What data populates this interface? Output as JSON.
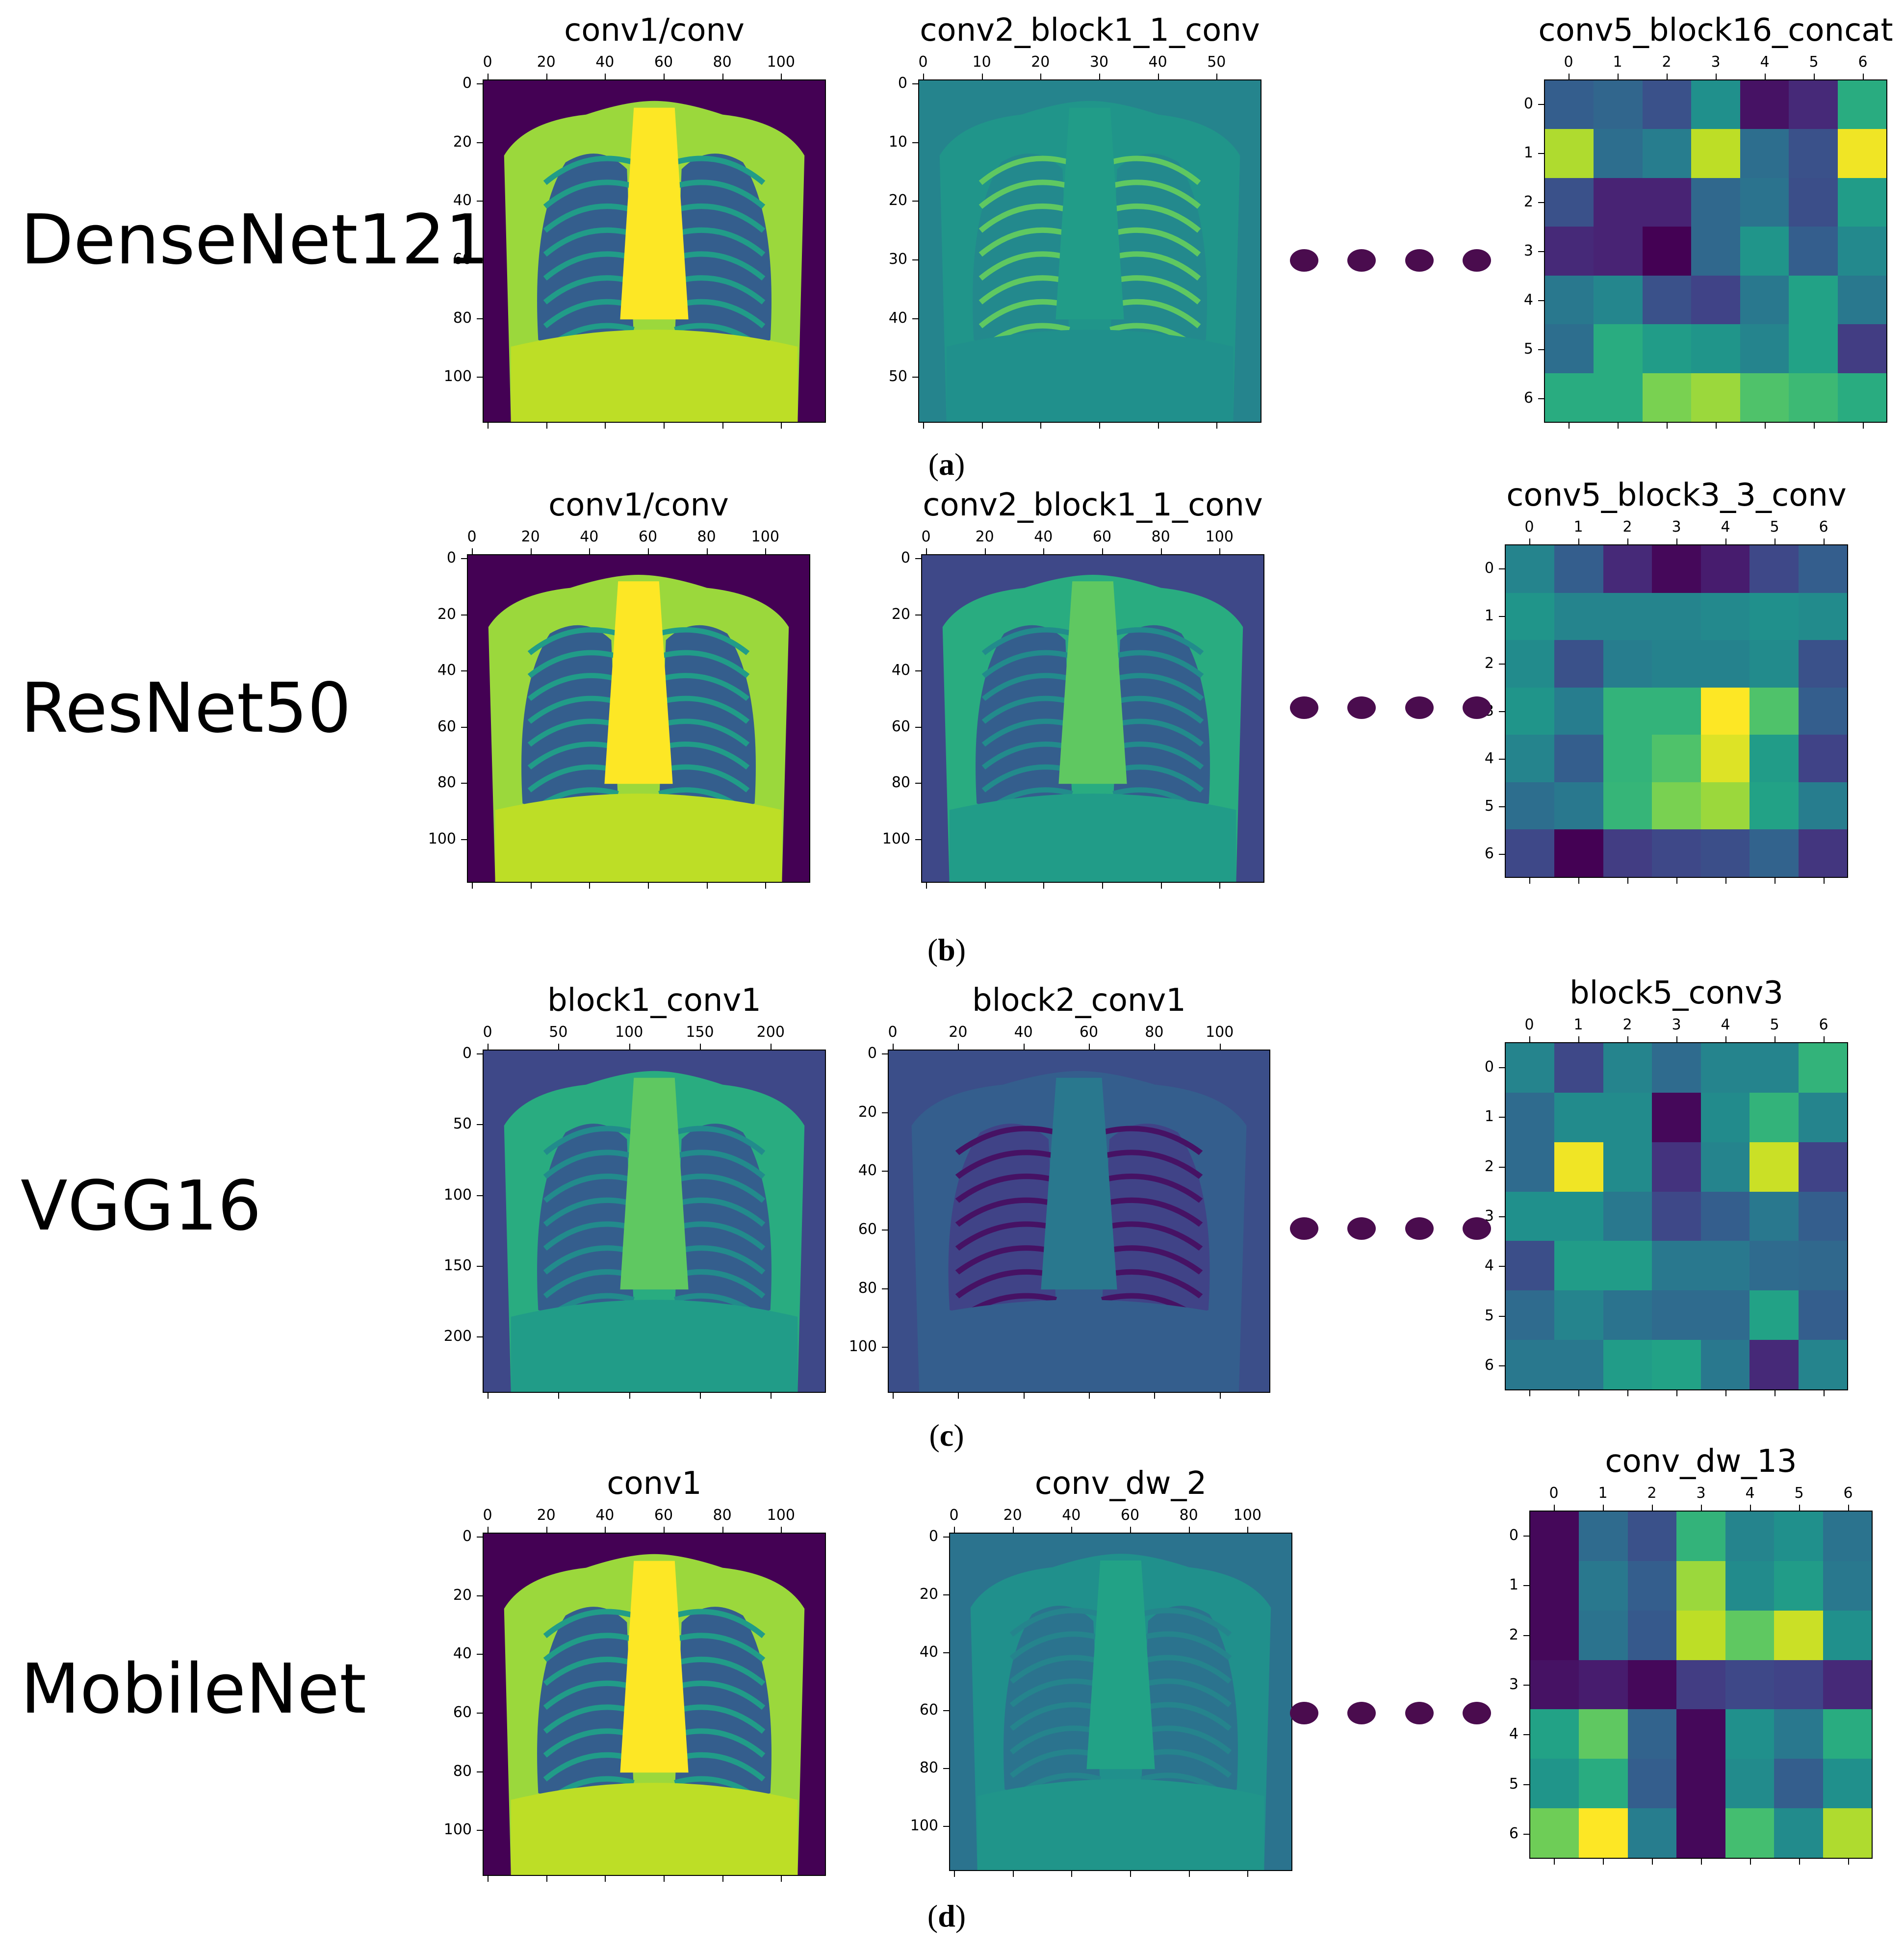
{
  "rows": [
    {
      "model": "DenseNet121",
      "caption_letter": "a",
      "panels": [
        {
          "title": "conv1/conv",
          "xticks": [
            "0",
            "20",
            "40",
            "60",
            "80",
            "100"
          ],
          "yticks": [
            "0",
            "20",
            "40",
            "60",
            "80",
            "100"
          ],
          "style": "xray-bright"
        },
        {
          "title": "conv2_block1_1_conv",
          "xticks": [
            "0",
            "10",
            "20",
            "30",
            "40",
            "50"
          ],
          "yticks": [
            "0",
            "10",
            "20",
            "30",
            "40",
            "50"
          ],
          "style": "edges-green"
        },
        {
          "title": "conv5_block16_concat",
          "xticks": [
            "0",
            "1",
            "2",
            "3",
            "4",
            "5",
            "6"
          ],
          "yticks": [
            "0",
            "1",
            "2",
            "3",
            "4",
            "5",
            "6"
          ],
          "style": "grid"
        }
      ]
    },
    {
      "model": "ResNet50",
      "caption_letter": "b",
      "panels": [
        {
          "title": "conv1/conv",
          "xticks": [
            "0",
            "20",
            "40",
            "60",
            "80",
            "100"
          ],
          "yticks": [
            "0",
            "20",
            "40",
            "60",
            "80",
            "100"
          ],
          "style": "xray-bright"
        },
        {
          "title": "conv2_block1_1_conv",
          "xticks": [
            "0",
            "20",
            "40",
            "60",
            "80",
            "100"
          ],
          "yticks": [
            "0",
            "20",
            "40",
            "60",
            "80",
            "100"
          ],
          "style": "xray-mid"
        },
        {
          "title": "conv5_block3_3_conv",
          "xticks": [
            "0",
            "1",
            "2",
            "3",
            "4",
            "5",
            "6"
          ],
          "yticks": [
            "0",
            "1",
            "2",
            "3",
            "4",
            "5",
            "6"
          ],
          "style": "grid"
        }
      ]
    },
    {
      "model": "VGG16",
      "caption_letter": "c",
      "panels": [
        {
          "title": "block1_conv1",
          "xticks": [
            "0",
            "50",
            "100",
            "150",
            "200"
          ],
          "yticks": [
            "0",
            "50",
            "100",
            "150",
            "200"
          ],
          "style": "xray-mid"
        },
        {
          "title": "block2_conv1",
          "xticks": [
            "0",
            "20",
            "40",
            "60",
            "80",
            "100"
          ],
          "yticks": [
            "0",
            "20",
            "40",
            "60",
            "80",
            "100"
          ],
          "style": "edges-dark"
        },
        {
          "title": "block5_conv3",
          "xticks": [
            "0",
            "1",
            "2",
            "3",
            "4",
            "5",
            "6"
          ],
          "yticks": [
            "0",
            "1",
            "2",
            "3",
            "4",
            "5",
            "6"
          ],
          "style": "grid"
        }
      ]
    },
    {
      "model": "MobileNet",
      "caption_letter": "d",
      "panels": [
        {
          "title": "conv1",
          "xticks": [
            "0",
            "20",
            "40",
            "60",
            "80",
            "100"
          ],
          "yticks": [
            "0",
            "20",
            "40",
            "60",
            "80",
            "100"
          ],
          "style": "xray-bright"
        },
        {
          "title": "conv_dw_2",
          "xticks": [
            "0",
            "20",
            "40",
            "60",
            "80",
            "100"
          ],
          "yticks": [
            "0",
            "20",
            "40",
            "60",
            "80",
            "100"
          ],
          "style": "xray-teal"
        },
        {
          "title": "conv_dw_13",
          "xticks": [
            "0",
            "1",
            "2",
            "3",
            "4",
            "5",
            "6"
          ],
          "yticks": [
            "0",
            "1",
            "2",
            "3",
            "4",
            "5",
            "6"
          ],
          "style": "grid"
        }
      ]
    }
  ],
  "heatmaps": [
    [
      [
        0.3,
        0.33,
        0.25,
        0.5,
        0.05,
        0.12,
        0.62
      ],
      [
        0.88,
        0.36,
        0.42,
        0.9,
        0.36,
        0.25,
        0.98
      ],
      [
        0.25,
        0.1,
        0.1,
        0.34,
        0.38,
        0.24,
        0.55
      ],
      [
        0.12,
        0.1,
        0.0,
        0.34,
        0.52,
        0.3,
        0.47
      ],
      [
        0.4,
        0.46,
        0.25,
        0.2,
        0.4,
        0.58,
        0.4
      ],
      [
        0.36,
        0.62,
        0.55,
        0.52,
        0.45,
        0.58,
        0.18
      ],
      [
        0.62,
        0.62,
        0.8,
        0.85,
        0.72,
        0.68,
        0.62
      ]
    ],
    [
      [
        0.45,
        0.3,
        0.12,
        0.02,
        0.08,
        0.22,
        0.3
      ],
      [
        0.52,
        0.45,
        0.45,
        0.45,
        0.47,
        0.5,
        0.48
      ],
      [
        0.48,
        0.25,
        0.42,
        0.44,
        0.44,
        0.48,
        0.25
      ],
      [
        0.52,
        0.42,
        0.65,
        0.65,
        1.0,
        0.72,
        0.3
      ],
      [
        0.45,
        0.3,
        0.65,
        0.72,
        0.95,
        0.55,
        0.2
      ],
      [
        0.36,
        0.4,
        0.66,
        0.8,
        0.85,
        0.58,
        0.42
      ],
      [
        0.22,
        0.0,
        0.18,
        0.22,
        0.24,
        0.32,
        0.16
      ]
    ],
    [
      [
        0.45,
        0.22,
        0.45,
        0.35,
        0.45,
        0.45,
        0.65
      ],
      [
        0.35,
        0.48,
        0.48,
        0.02,
        0.48,
        0.65,
        0.45
      ],
      [
        0.35,
        0.98,
        0.48,
        0.15,
        0.45,
        0.92,
        0.2
      ],
      [
        0.5,
        0.5,
        0.4,
        0.22,
        0.3,
        0.4,
        0.3
      ],
      [
        0.24,
        0.55,
        0.55,
        0.4,
        0.4,
        0.35,
        0.34
      ],
      [
        0.35,
        0.45,
        0.38,
        0.35,
        0.35,
        0.58,
        0.3
      ],
      [
        0.4,
        0.4,
        0.55,
        0.58,
        0.4,
        0.12,
        0.45
      ]
    ],
    [
      [
        0.02,
        0.35,
        0.25,
        0.65,
        0.45,
        0.5,
        0.38
      ],
      [
        0.02,
        0.4,
        0.3,
        0.85,
        0.48,
        0.55,
        0.4
      ],
      [
        0.02,
        0.38,
        0.28,
        0.9,
        0.75,
        0.92,
        0.5
      ],
      [
        0.05,
        0.08,
        0.02,
        0.18,
        0.22,
        0.2,
        0.12
      ],
      [
        0.58,
        0.75,
        0.32,
        0.02,
        0.5,
        0.4,
        0.62
      ],
      [
        0.52,
        0.62,
        0.3,
        0.02,
        0.48,
        0.3,
        0.5
      ],
      [
        0.78,
        1.0,
        0.42,
        0.02,
        0.7,
        0.48,
        0.88
      ]
    ]
  ]
}
